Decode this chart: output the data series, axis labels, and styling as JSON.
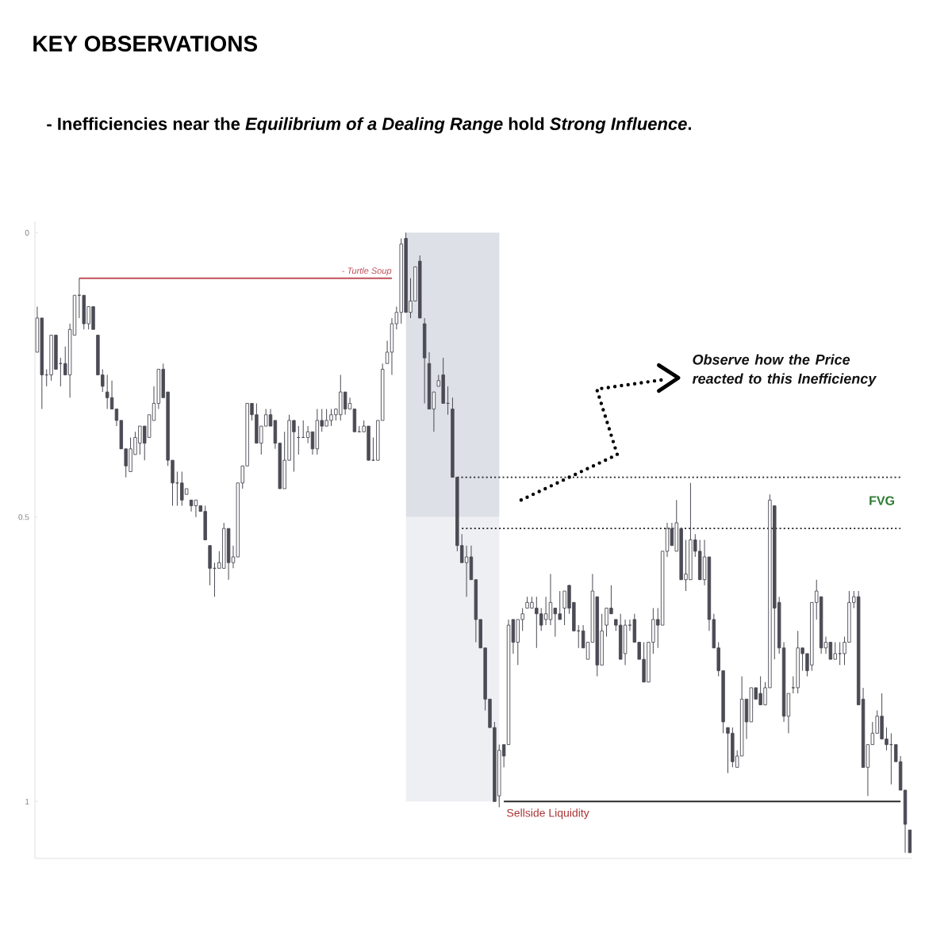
{
  "chart_data": {
    "type": "candlestick",
    "title": "KEY OBSERVATIONS",
    "subtitle": "- Inefficiencies near the *Equilibrium of a Dealing Range* hold *Strong Influence*.",
    "categories": [
      null,
      null,
      null,
      null,
      null,
      null,
      null,
      null,
      null,
      null,
      null,
      null,
      null,
      null,
      null,
      null,
      null,
      null,
      null,
      null,
      null,
      null,
      null,
      null,
      null,
      null,
      null,
      null,
      null,
      null,
      null,
      null,
      null,
      null,
      null,
      null,
      null,
      null,
      null,
      null,
      null,
      null,
      null,
      null,
      null,
      null,
      null,
      null,
      null,
      null,
      null,
      null,
      null,
      null,
      null,
      null,
      null,
      null,
      null,
      null,
      null,
      null,
      null,
      null,
      null,
      null,
      null,
      null,
      null,
      null,
      null,
      null,
      null,
      null,
      null,
      null,
      null,
      null,
      null,
      null,
      null,
      null,
      null,
      null,
      null,
      null,
      null,
      null,
      null,
      null,
      null,
      null,
      null,
      null,
      null,
      null,
      null,
      null,
      null,
      null,
      null,
      null,
      null,
      null,
      null,
      null,
      null,
      null,
      null,
      null,
      null,
      null,
      null,
      null,
      null,
      null,
      null,
      null,
      null,
      null,
      null,
      null,
      null,
      null,
      null,
      null,
      null,
      null,
      null,
      null,
      null,
      null,
      null,
      null,
      null,
      null,
      null,
      null,
      null,
      null,
      null,
      null,
      null,
      null,
      null,
      null,
      null,
      null,
      null,
      null,
      null,
      null,
      null,
      null,
      null,
      null,
      null,
      null,
      null,
      null,
      null,
      null,
      null,
      null,
      null,
      null,
      null,
      null,
      null,
      null,
      null,
      null,
      null,
      null,
      null,
      null,
      null,
      null,
      null,
      null,
      null,
      null,
      null,
      null,
      null,
      null,
      null,
      null
    ],
    "ohlc": [
      [
        0.21,
        0.21,
        0.13,
        0.15
      ],
      [
        0.15,
        0.31,
        0.15,
        0.25
      ],
      [
        0.25,
        0.27,
        0.24,
        0.25
      ],
      [
        0.25,
        0.26,
        0.18,
        0.18
      ],
      [
        0.18,
        0.24,
        0.18,
        0.24
      ],
      [
        0.23,
        0.27,
        0.22,
        0.23
      ],
      [
        0.23,
        0.25,
        0.2,
        0.25
      ],
      [
        0.25,
        0.29,
        0.16,
        0.17
      ],
      [
        0.18,
        0.18,
        0.11,
        0.11
      ],
      [
        0.11,
        0.15,
        0.08,
        0.11
      ],
      [
        0.11,
        0.17,
        0.11,
        0.16
      ],
      [
        0.16,
        0.17,
        0.13,
        0.13
      ],
      [
        0.13,
        0.17,
        0.13,
        0.17
      ],
      [
        0.18,
        0.25,
        0.18,
        0.25
      ],
      [
        0.25,
        0.28,
        0.24,
        0.27
      ],
      [
        0.28,
        0.31,
        0.25,
        0.29
      ],
      [
        0.29,
        0.31,
        0.26,
        0.31
      ],
      [
        0.31,
        0.34,
        0.31,
        0.33
      ],
      [
        0.33,
        0.38,
        0.33,
        0.38
      ],
      [
        0.38,
        0.43,
        0.38,
        0.41
      ],
      [
        0.42,
        0.42,
        0.36,
        0.38
      ],
      [
        0.39,
        0.39,
        0.35,
        0.36
      ],
      [
        0.37,
        0.39,
        0.34,
        0.34
      ],
      [
        0.34,
        0.4,
        0.34,
        0.37
      ],
      [
        0.36,
        0.36,
        0.32,
        0.32
      ],
      [
        0.33,
        0.33,
        0.27,
        0.3
      ],
      [
        0.3,
        0.31,
        0.24,
        0.24
      ],
      [
        0.24,
        0.29,
        0.23,
        0.29
      ],
      [
        0.28,
        0.41,
        0.28,
        0.4
      ],
      [
        0.4,
        0.48,
        0.4,
        0.44
      ],
      [
        0.44,
        0.48,
        0.42,
        0.44
      ],
      [
        0.44,
        0.48,
        0.42,
        0.47
      ],
      [
        0.46,
        0.46,
        0.45,
        0.45
      ],
      [
        0.47,
        0.49,
        0.47,
        0.48
      ],
      [
        0.48,
        0.5,
        0.47,
        0.47
      ],
      [
        0.48,
        0.49,
        0.48,
        0.49
      ],
      [
        0.49,
        0.54,
        0.48,
        0.54
      ],
      [
        0.55,
        0.62,
        0.55,
        0.59
      ],
      [
        0.59,
        0.64,
        0.58,
        0.59
      ],
      [
        0.59,
        0.59,
        0.56,
        0.58
      ],
      [
        0.59,
        0.59,
        0.51,
        0.52
      ],
      [
        0.52,
        0.61,
        0.52,
        0.58
      ],
      [
        0.58,
        0.59,
        0.55,
        0.57
      ],
      [
        0.57,
        0.57,
        0.44,
        0.44
      ],
      [
        0.44,
        0.45,
        0.41,
        0.41
      ],
      [
        0.41,
        0.41,
        0.3,
        0.3
      ],
      [
        0.3,
        0.33,
        0.3,
        0.32
      ],
      [
        0.32,
        0.37,
        0.3,
        0.37
      ],
      [
        0.37,
        0.39,
        0.34,
        0.34
      ],
      [
        0.34,
        0.34,
        0.31,
        0.32
      ],
      [
        0.32,
        0.34,
        0.31,
        0.34
      ],
      [
        0.33,
        0.38,
        0.33,
        0.37
      ],
      [
        0.37,
        0.45,
        0.37,
        0.45
      ],
      [
        0.45,
        0.45,
        0.35,
        0.4
      ],
      [
        0.4,
        0.4,
        0.32,
        0.33
      ],
      [
        0.33,
        0.42,
        0.33,
        0.35
      ],
      [
        0.36,
        0.39,
        0.34,
        0.36
      ],
      [
        0.36,
        0.36,
        0.33,
        0.36
      ],
      [
        0.36,
        0.37,
        0.34,
        0.35
      ],
      [
        0.35,
        0.39,
        0.35,
        0.38
      ],
      [
        0.38,
        0.39,
        0.31,
        0.33
      ],
      [
        0.33,
        0.35,
        0.31,
        0.34
      ],
      [
        0.34,
        0.34,
        0.31,
        0.33
      ],
      [
        0.33,
        0.34,
        0.31,
        0.32
      ],
      [
        0.32,
        0.33,
        0.31,
        0.31
      ],
      [
        0.32,
        0.33,
        0.25,
        0.28
      ],
      [
        0.28,
        0.32,
        0.28,
        0.31
      ],
      [
        0.31,
        0.31,
        0.29,
        0.3
      ],
      [
        0.31,
        0.35,
        0.31,
        0.35
      ],
      [
        0.35,
        0.35,
        0.34,
        0.35
      ],
      [
        0.35,
        0.35,
        0.33,
        0.34
      ],
      [
        0.34,
        0.4,
        0.34,
        0.4
      ],
      [
        0.4,
        0.4,
        0.36,
        0.4
      ],
      [
        0.4,
        0.4,
        0.33,
        0.33
      ],
      [
        0.33,
        0.33,
        0.23,
        0.24
      ],
      [
        0.23,
        0.23,
        0.19,
        0.21
      ],
      [
        0.21,
        0.25,
        0.15,
        0.16
      ],
      [
        0.16,
        0.17,
        0.13,
        0.14
      ],
      [
        0.14,
        0.16,
        0.01,
        0.02
      ],
      [
        0.01,
        0.14,
        0,
        0.14
      ],
      [
        0.14,
        0.15,
        0.08,
        0.12
      ],
      [
        0.12,
        0.12,
        0.06,
        0.06
      ],
      [
        0.05,
        0.15,
        0.04,
        0.15
      ],
      [
        0.16,
        0.3,
        0.15,
        0.22
      ],
      [
        0.23,
        0.31,
        0.21,
        0.31
      ],
      [
        0.31,
        0.35,
        0.28,
        0.28
      ],
      [
        0.27,
        0.27,
        0.25,
        0.26
      ],
      [
        0.25,
        0.3,
        0.22,
        0.3
      ],
      [
        0.3,
        0.32,
        0.27,
        0.3
      ],
      [
        0.31,
        0.43,
        0.29,
        0.43
      ],
      [
        0.43,
        0.56,
        0.43,
        0.55
      ],
      [
        0.55,
        0.58,
        0.53,
        0.58
      ],
      [
        0.58,
        0.64,
        0.55,
        0.57
      ],
      [
        0.57,
        0.61,
        0.55,
        0.61
      ],
      [
        0.61,
        0.72,
        0.61,
        0.68
      ],
      [
        0.68,
        0.73,
        0.68,
        0.73
      ],
      [
        0.73,
        0.84,
        0.73,
        0.82
      ],
      [
        0.82,
        0.87,
        0.82,
        0.87
      ],
      [
        0.87,
        1.0,
        0.86,
        1.0
      ],
      [
        0.99,
        1.01,
        0.9,
        0.91
      ],
      [
        0.9,
        0.94,
        0.9,
        0.92
      ],
      [
        0.9,
        0.9,
        0.68,
        0.69
      ],
      [
        0.68,
        0.74,
        0.68,
        0.72
      ],
      [
        0.72,
        0.76,
        0.68,
        0.68
      ],
      [
        0.68,
        0.7,
        0.66,
        0.67
      ],
      [
        0.66,
        0.66,
        0.64,
        0.65
      ],
      [
        0.66,
        0.66,
        0.64,
        0.65
      ],
      [
        0.66,
        0.73,
        0.64,
        0.67
      ],
      [
        0.67,
        0.7,
        0.66,
        0.69
      ],
      [
        0.68,
        0.69,
        0.64,
        0.67
      ],
      [
        0.68,
        0.69,
        0.6,
        0.65
      ],
      [
        0.66,
        0.71,
        0.66,
        0.67
      ],
      [
        0.67,
        0.68,
        0.63,
        0.68
      ],
      [
        0.66,
        0.69,
        0.63,
        0.63
      ],
      [
        0.62,
        0.67,
        0.62,
        0.66
      ],
      [
        0.65,
        0.7,
        0.65,
        0.7
      ],
      [
        0.7,
        0.73,
        0.69,
        0.7
      ],
      [
        0.7,
        0.73,
        0.69,
        0.73
      ],
      [
        0.75,
        0.75,
        0.72,
        0.72
      ],
      [
        0.72,
        0.72,
        0.6,
        0.63
      ],
      [
        0.64,
        0.78,
        0.64,
        0.76
      ],
      [
        0.76,
        0.76,
        0.67,
        0.7
      ],
      [
        0.69,
        0.71,
        0.66,
        0.66
      ],
      [
        0.66,
        0.67,
        0.62,
        0.67
      ],
      [
        0.68,
        0.7,
        0.68,
        0.69
      ],
      [
        0.69,
        0.75,
        0.67,
        0.75
      ],
      [
        0.74,
        0.76,
        0.68,
        0.69
      ],
      [
        0.69,
        0.7,
        0.68,
        0.69
      ],
      [
        0.68,
        0.72,
        0.67,
        0.72
      ],
      [
        0.72,
        0.75,
        0.72,
        0.75
      ],
      [
        0.75,
        0.79,
        0.72,
        0.79
      ],
      [
        0.79,
        0.79,
        0.72,
        0.72
      ],
      [
        0.72,
        0.74,
        0.66,
        0.68
      ],
      [
        0.68,
        0.73,
        0.66,
        0.69
      ],
      [
        0.69,
        0.69,
        0.56,
        0.56
      ],
      [
        0.56,
        0.57,
        0.51,
        0.52
      ],
      [
        0.52,
        0.55,
        0.51,
        0.55
      ],
      [
        0.56,
        0.56,
        0.47,
        0.51
      ],
      [
        0.52,
        0.61,
        0.52,
        0.61
      ],
      [
        0.61,
        0.63,
        0.54,
        0.6
      ],
      [
        0.61,
        0.61,
        0.44,
        0.54
      ],
      [
        0.54,
        0.57,
        0.53,
        0.56
      ],
      [
        0.56,
        0.61,
        0.54,
        0.61
      ],
      [
        0.61,
        0.62,
        0.54,
        0.57
      ],
      [
        0.57,
        0.7,
        0.57,
        0.68
      ],
      [
        0.68,
        0.73,
        0.67,
        0.73
      ],
      [
        0.73,
        0.78,
        0.72,
        0.77
      ],
      [
        0.77,
        0.88,
        0.77,
        0.86
      ],
      [
        0.87,
        0.95,
        0.87,
        0.88
      ],
      [
        0.88,
        0.94,
        0.87,
        0.93
      ],
      [
        0.94,
        0.94,
        0.91,
        0.92
      ],
      [
        0.92,
        0.92,
        0.78,
        0.82
      ],
      [
        0.82,
        0.89,
        0.82,
        0.86
      ],
      [
        0.86,
        0.86,
        0.8,
        0.8
      ],
      [
        0.8,
        0.82,
        0.8,
        0.82
      ],
      [
        0.81,
        0.83,
        0.78,
        0.83
      ],
      [
        0.83,
        0.83,
        0.79,
        0.8
      ],
      [
        0.8,
        0.8,
        0.46,
        0.47
      ],
      [
        0.48,
        0.75,
        0.48,
        0.66
      ],
      [
        0.65,
        0.74,
        0.64,
        0.73
      ],
      [
        0.73,
        0.86,
        0.72,
        0.85
      ],
      [
        0.85,
        0.88,
        0.81,
        0.81
      ],
      [
        0.8,
        0.81,
        0.78,
        0.8
      ],
      [
        0.8,
        0.81,
        0.7,
        0.73
      ],
      [
        0.73,
        0.77,
        0.73,
        0.74
      ],
      [
        0.74,
        0.78,
        0.74,
        0.77
      ],
      [
        0.76,
        0.77,
        0.65,
        0.65
      ],
      [
        0.65,
        0.68,
        0.61,
        0.63
      ],
      [
        0.64,
        0.74,
        0.64,
        0.73
      ],
      [
        0.73,
        0.74,
        0.71,
        0.72
      ],
      [
        0.72,
        0.75,
        0.72,
        0.75
      ],
      [
        0.75,
        0.75,
        0.72,
        0.74
      ],
      [
        0.74,
        0.76,
        0.72,
        0.74
      ],
      [
        0.74,
        0.76,
        0.71,
        0.72
      ],
      [
        0.72,
        0.72,
        0.63,
        0.65
      ],
      [
        0.65,
        0.66,
        0.63,
        0.64
      ],
      [
        0.64,
        0.83,
        0.63,
        0.83
      ],
      [
        0.82,
        0.94,
        0.8,
        0.94
      ],
      [
        0.94,
        0.99,
        0.9,
        0.9
      ],
      [
        0.9,
        0.9,
        0.86,
        0.88
      ],
      [
        0.88,
        0.88,
        0.84,
        0.85
      ],
      [
        0.85,
        0.89,
        0.81,
        0.89
      ],
      [
        0.89,
        0.91,
        0.87,
        0.9
      ],
      [
        0.9,
        0.97,
        0.88,
        0.9
      ],
      [
        0.9,
        0.93,
        0.9,
        0.93
      ],
      [
        0.93,
        0.98,
        0.92,
        0.98
      ],
      [
        0.98,
        1.09,
        0.98,
        1.04
      ],
      [
        1.05,
        1.09,
        1.05,
        1.09
      ]
    ],
    "color": "#4b4b55",
    "ylim": [
      1.1,
      -0.02
    ],
    "yticks": [
      0,
      0.5,
      1
    ],
    "tick_labels": "y",
    "series": [
      {
        "type": "line",
        "name": "- Turtle Soup",
        "color": "#c0505a",
        "line_style": "solid",
        "values": [
          null,
          null,
          null,
          null,
          null,
          null,
          null,
          null,
          null,
          0.08,
          0.08,
          0.08,
          0.08,
          0.08,
          0.08,
          0.08,
          0.08,
          0.08,
          0.08,
          0.08,
          0.08,
          0.08,
          0.08,
          0.08,
          0.08,
          0.08,
          0.08,
          0.08,
          0.08,
          0.08,
          0.08,
          0.08,
          0.08,
          0.08,
          0.08,
          0.08,
          0.08,
          0.08,
          0.08,
          0.08,
          0.08,
          0.08,
          0.08,
          0.08,
          0.08,
          0.08,
          0.08,
          0.08,
          0.08,
          0.08,
          0.08,
          0.08,
          0.08,
          0.08,
          0.08,
          0.08,
          0.08,
          0.08,
          0.08,
          0.08,
          0.08,
          0.08,
          0.08,
          0.08,
          0.08,
          0.08,
          0.08,
          0.08,
          0.08,
          0.08,
          0.08,
          0.08,
          0.08,
          0.08,
          0.08,
          0.08,
          0.08,
          null,
          null,
          null,
          null,
          null,
          null,
          null,
          null,
          null,
          null,
          null,
          null,
          null,
          null,
          null,
          null,
          null,
          null,
          null,
          null,
          null,
          null,
          null,
          null,
          null,
          null,
          null,
          null,
          null,
          null,
          null,
          null,
          null,
          null,
          null,
          null,
          null,
          null,
          null,
          null,
          null,
          null,
          null,
          null,
          null,
          null,
          null,
          null,
          null,
          null,
          null,
          null,
          null,
          null,
          null,
          null,
          null,
          null,
          null,
          null,
          null,
          null,
          null,
          null,
          null,
          null,
          null,
          null,
          null,
          null,
          null,
          null,
          null,
          null,
          null,
          null,
          null,
          null,
          null,
          null,
          null,
          null,
          null,
          null,
          null,
          null,
          null,
          null,
          null,
          null,
          null,
          null,
          null,
          null,
          null,
          null,
          null,
          null,
          null,
          null,
          null,
          null,
          null,
          null,
          null,
          null,
          null,
          null,
          null,
          null,
          null
        ]
      },
      {
        "type": "line",
        "color": "#222222",
        "line_style": "dotted",
        "values": [
          null,
          null,
          null,
          null,
          null,
          null,
          null,
          null,
          null,
          null,
          null,
          null,
          null,
          null,
          null,
          null,
          null,
          null,
          null,
          null,
          null,
          null,
          null,
          null,
          null,
          null,
          null,
          null,
          null,
          null,
          null,
          null,
          null,
          null,
          null,
          null,
          null,
          null,
          null,
          null,
          null,
          null,
          null,
          null,
          null,
          null,
          null,
          null,
          null,
          null,
          null,
          null,
          null,
          null,
          null,
          null,
          null,
          null,
          null,
          null,
          null,
          null,
          null,
          null,
          null,
          null,
          null,
          null,
          null,
          null,
          null,
          null,
          null,
          null,
          null,
          null,
          null,
          null,
          null,
          null,
          null,
          null,
          null,
          null,
          null,
          null,
          null,
          null,
          null,
          null,
          0.43,
          0.43,
          0.43,
          0.43,
          0.43,
          0.43,
          0.43,
          0.43,
          0.43,
          0.43,
          0.43,
          0.43,
          0.43,
          0.43,
          0.43,
          0.43,
          0.43,
          0.43,
          0.43,
          0.43,
          0.43,
          0.43,
          0.43,
          0.43,
          0.43,
          0.43,
          0.43,
          0.43,
          0.43,
          0.43,
          0.43,
          0.43,
          0.43,
          0.43,
          0.43,
          0.43,
          0.43,
          0.43,
          0.43,
          0.43,
          0.43,
          0.43,
          0.43,
          0.43,
          0.43,
          0.43,
          0.43,
          0.43,
          0.43,
          0.43,
          0.43,
          0.43,
          0.43,
          0.43,
          0.43,
          0.43,
          0.43,
          0.43,
          0.43,
          0.43,
          0.43,
          0.43,
          0.43,
          0.43,
          0.43,
          0.43,
          0.43,
          0.43,
          0.43,
          0.43,
          0.43,
          0.43,
          0.43,
          0.43,
          0.43,
          0.43,
          0.43,
          0.43,
          0.43,
          0.43,
          0.43,
          0.43,
          0.43,
          0.43,
          0.43,
          0.43,
          0.43,
          0.43,
          0.43,
          0.43,
          0.43,
          0.43,
          0.43,
          0.43,
          0.43,
          0.43,
          null,
          null
        ]
      },
      {
        "type": "line",
        "color": "#222222",
        "line_style": "dotted",
        "values": [
          null,
          null,
          null,
          null,
          null,
          null,
          null,
          null,
          null,
          null,
          null,
          null,
          null,
          null,
          null,
          null,
          null,
          null,
          null,
          null,
          null,
          null,
          null,
          null,
          null,
          null,
          null,
          null,
          null,
          null,
          null,
          null,
          null,
          null,
          null,
          null,
          null,
          null,
          null,
          null,
          null,
          null,
          null,
          null,
          null,
          null,
          null,
          null,
          null,
          null,
          null,
          null,
          null,
          null,
          null,
          null,
          null,
          null,
          null,
          null,
          null,
          null,
          null,
          null,
          null,
          null,
          null,
          null,
          null,
          null,
          null,
          null,
          null,
          null,
          null,
          null,
          null,
          null,
          null,
          null,
          null,
          null,
          null,
          null,
          null,
          null,
          null,
          null,
          null,
          null,
          null,
          0.52,
          0.52,
          0.52,
          0.52,
          0.52,
          0.52,
          0.52,
          0.52,
          0.52,
          0.52,
          0.52,
          0.52,
          0.52,
          0.52,
          0.52,
          0.52,
          0.52,
          0.52,
          0.52,
          0.52,
          0.52,
          0.52,
          0.52,
          0.52,
          0.52,
          0.52,
          0.52,
          0.52,
          0.52,
          0.52,
          0.52,
          0.52,
          0.52,
          0.52,
          0.52,
          0.52,
          0.52,
          0.52,
          0.52,
          0.52,
          0.52,
          0.52,
          0.52,
          0.52,
          0.52,
          0.52,
          0.52,
          0.52,
          0.52,
          0.52,
          0.52,
          0.52,
          0.52,
          0.52,
          0.52,
          0.52,
          0.52,
          0.52,
          0.52,
          0.52,
          0.52,
          0.52,
          0.52,
          0.52,
          0.52,
          0.52,
          0.52,
          0.52,
          0.52,
          0.52,
          0.52,
          0.52,
          0.52,
          0.52,
          0.52,
          0.52,
          0.52,
          0.52,
          0.52,
          0.52,
          0.52,
          0.52,
          0.52,
          0.52,
          0.52,
          0.52,
          0.52,
          0.52,
          0.52,
          0.52,
          0.52,
          0.52,
          0.52,
          0.52,
          0.52,
          null,
          null
        ]
      },
      {
        "type": "line",
        "color": "#2a2a2a",
        "line_style": "solid",
        "values": [
          null,
          null,
          null,
          null,
          null,
          null,
          null,
          null,
          null,
          null,
          null,
          null,
          null,
          null,
          null,
          null,
          null,
          null,
          null,
          null,
          null,
          null,
          null,
          null,
          null,
          null,
          null,
          null,
          null,
          null,
          null,
          null,
          null,
          null,
          null,
          null,
          null,
          null,
          null,
          null,
          null,
          null,
          null,
          null,
          null,
          null,
          null,
          null,
          null,
          null,
          null,
          null,
          null,
          null,
          null,
          null,
          null,
          null,
          null,
          null,
          null,
          null,
          null,
          null,
          null,
          null,
          null,
          null,
          null,
          null,
          null,
          null,
          null,
          null,
          null,
          null,
          null,
          null,
          null,
          null,
          null,
          null,
          null,
          null,
          null,
          null,
          null,
          null,
          null,
          null,
          null,
          null,
          null,
          null,
          null,
          null,
          null,
          null,
          null,
          null,
          1,
          1,
          1,
          1,
          1,
          1,
          1,
          1,
          1,
          1,
          1,
          1,
          1,
          1,
          1,
          1,
          1,
          1,
          1,
          1,
          1,
          1,
          1,
          1,
          1,
          1,
          1,
          1,
          1,
          1,
          1,
          1,
          1,
          1,
          1,
          1,
          1,
          1,
          1,
          1,
          1,
          1,
          1,
          1,
          1,
          1,
          1,
          1,
          1,
          1,
          1,
          1,
          1,
          1,
          1,
          1,
          1,
          1,
          1,
          1,
          1,
          1,
          1,
          1,
          1,
          1,
          1,
          1,
          1,
          1,
          1,
          1,
          1,
          1,
          1,
          1,
          1,
          1,
          1,
          1,
          1,
          1,
          1,
          1,
          1,
          1,
          null,
          null
        ]
      }
    ],
    "annotations": [
      "FVG",
      "Observe how the Price reacted to this Inefficiency",
      "Sellside Liquidity"
    ]
  }
}
